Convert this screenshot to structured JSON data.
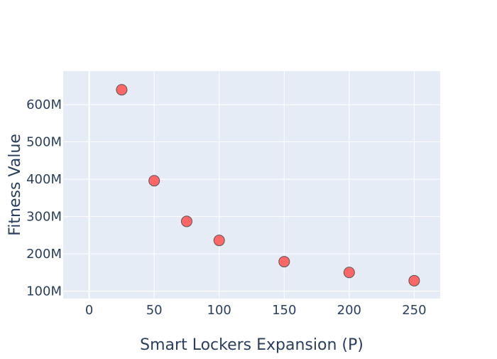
{
  "chart_data": {
    "type": "scatter",
    "title": "",
    "xlabel": "Smart Lockers Expansion (P)",
    "ylabel": "Fitness Value",
    "xlim": [
      -20,
      270
    ],
    "ylim": [
      80000000,
      690000000
    ],
    "x_ticks": [
      0,
      50,
      100,
      150,
      200,
      250
    ],
    "x_tick_labels": [
      "0",
      "50",
      "100",
      "150",
      "200",
      "250"
    ],
    "y_ticks": [
      100000000,
      200000000,
      300000000,
      400000000,
      500000000,
      600000000
    ],
    "y_tick_labels": [
      "100M",
      "200M",
      "300M",
      "400M",
      "500M",
      "600M"
    ],
    "grid": true,
    "legend": "none",
    "colors": {
      "plot_background": "#E5ECF6",
      "grid": "#FFFFFF",
      "marker_fill": "#FF6666",
      "marker_stroke": "#555555",
      "text": "#2A3F5F"
    },
    "series": [
      {
        "x": [
          25,
          50,
          75,
          100,
          150,
          200,
          250
        ],
        "y": [
          640000000,
          396000000,
          287000000,
          236000000,
          179000000,
          150000000,
          128000000
        ]
      }
    ]
  }
}
